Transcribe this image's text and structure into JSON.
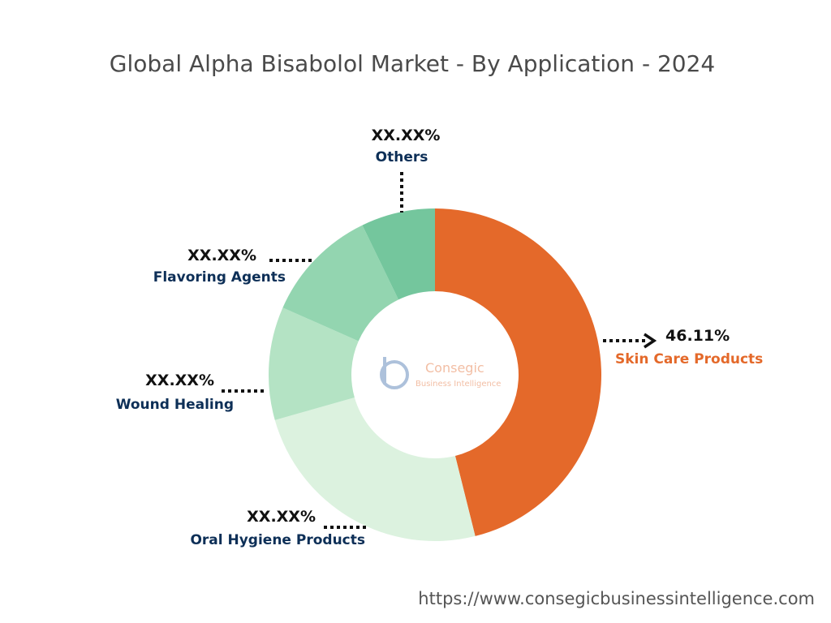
{
  "title": "Global Alpha Bisabolol Market - By Application - 2024",
  "chart_data": {
    "type": "pie",
    "donut": true,
    "title": "Global Alpha Bisabolol Market - By Application - 2024",
    "slices": [
      {
        "name": "Skin Care Products",
        "value_label": "46.11%",
        "value": 46.11,
        "color": "#e4692a"
      },
      {
        "name": "Oral Hygiene Products",
        "value_label": "XX.XX%",
        "value": 24.5,
        "color": "#dcf2df"
      },
      {
        "name": "Wound Healing",
        "value_label": "XX.XX%",
        "value": 11.0,
        "color": "#b4e3c4"
      },
      {
        "name": "Flavoring Agents",
        "value_label": "XX.XX%",
        "value": 11.2,
        "color": "#93d5b0"
      },
      {
        "name": "Others",
        "value_label": "XX.XX%",
        "value": 7.19,
        "color": "#74c69d"
      }
    ]
  },
  "logo": {
    "name": "Consegic",
    "tagline": "Business Intelligence"
  },
  "footer": {
    "url": "https://www.consegicbusinessintelligence.com"
  }
}
